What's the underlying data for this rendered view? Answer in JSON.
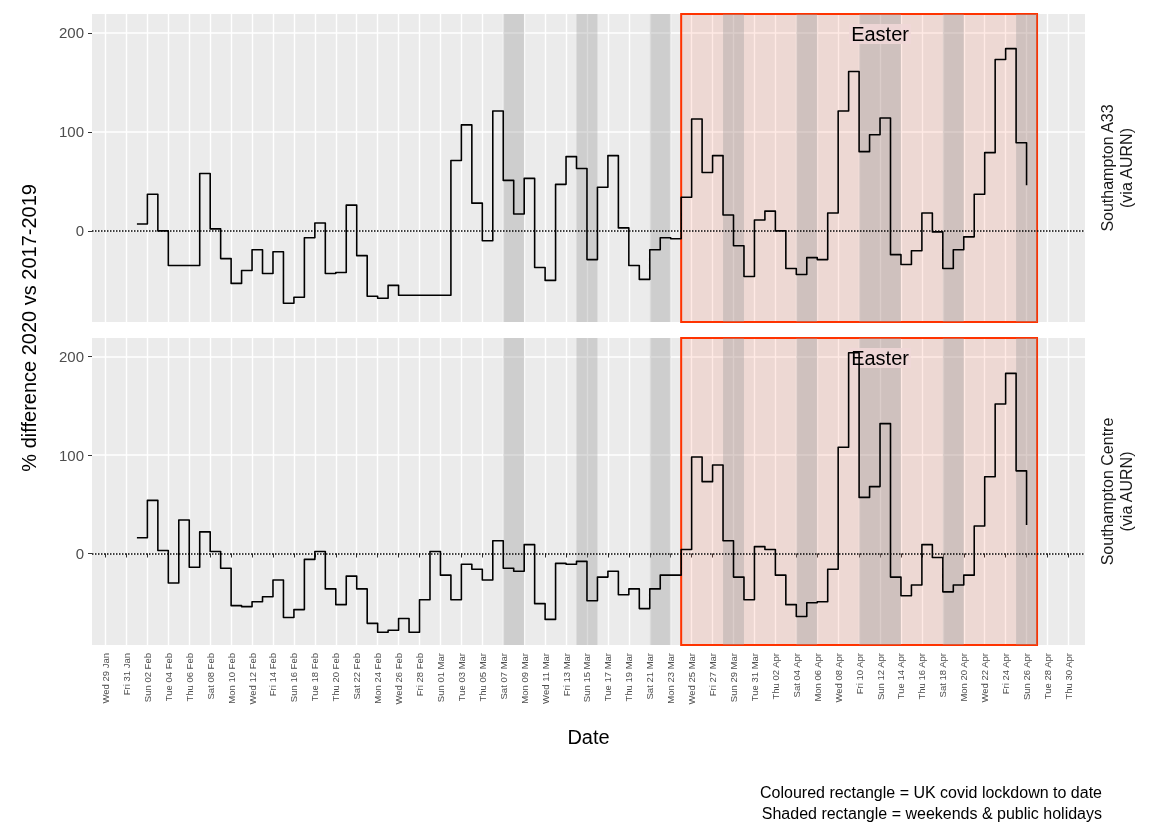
{
  "chart_data": [
    {
      "type": "step",
      "annotations": [
        "Southampton A33\n(via AURN)"
      ],
      "ylabel": "% difference 2020 vs 2017-2019",
      "tick_labels": "y",
      "grid": true,
      "marker": "none",
      "line_style": "solid",
      "color": "#000000",
      "x": [
        "2020-02-01",
        "2020-02-02",
        "2020-02-03",
        "2020-02-04",
        "2020-02-05",
        "2020-02-06",
        "2020-02-07",
        "2020-02-08",
        "2020-02-09",
        "2020-02-10",
        "2020-02-11",
        "2020-02-12",
        "2020-02-13",
        "2020-02-14",
        "2020-02-15",
        "2020-02-16",
        "2020-02-17",
        "2020-02-18",
        "2020-02-19",
        "2020-02-20",
        "2020-02-21",
        "2020-02-22",
        "2020-02-23",
        "2020-02-24",
        "2020-02-25",
        "2020-02-26",
        "2020-02-27",
        "2020-02-28",
        "2020-02-29",
        "2020-03-01",
        "2020-03-02",
        "2020-03-03",
        "2020-03-04",
        "2020-03-05",
        "2020-03-06",
        "2020-03-07",
        "2020-03-08",
        "2020-03-09",
        "2020-03-10",
        "2020-03-11",
        "2020-03-12",
        "2020-03-13",
        "2020-03-14",
        "2020-03-15",
        "2020-03-16",
        "2020-03-17",
        "2020-03-18",
        "2020-03-19",
        "2020-03-20",
        "2020-03-21",
        "2020-03-22",
        "2020-03-23",
        "2020-03-24",
        "2020-03-25",
        "2020-03-26",
        "2020-03-27",
        "2020-03-28",
        "2020-03-29",
        "2020-03-30",
        "2020-03-31",
        "2020-04-01",
        "2020-04-02",
        "2020-04-03",
        "2020-04-04",
        "2020-04-05",
        "2020-04-06",
        "2020-04-07",
        "2020-04-08",
        "2020-04-09",
        "2020-04-10",
        "2020-04-11",
        "2020-04-12",
        "2020-04-13",
        "2020-04-14",
        "2020-04-15",
        "2020-04-16",
        "2020-04-17",
        "2020-04-18",
        "2020-04-19",
        "2020-04-20",
        "2020-04-21",
        "2020-04-22",
        "2020-04-23",
        "2020-04-24",
        "2020-04-25",
        "2020-04-26"
      ],
      "values": [
        7,
        37,
        0,
        -35,
        -35,
        -35,
        58,
        2,
        -28,
        -53,
        -40,
        -19,
        -43,
        -21,
        -73,
        -67,
        -7,
        8,
        -43,
        -42,
        26,
        -25,
        -66,
        -68,
        -55,
        -65,
        -65,
        -65,
        -65,
        -65,
        71,
        107,
        28,
        -10,
        121,
        51,
        17,
        53,
        -37,
        -50,
        47,
        75,
        63,
        -29,
        44,
        76,
        3,
        -35,
        -49,
        -19,
        -7,
        -8,
        34,
        113,
        59,
        76,
        16,
        -15,
        -46,
        11,
        20,
        0,
        -38,
        -44,
        -27,
        -29,
        18,
        121,
        161,
        80,
        97,
        114,
        -24,
        -34,
        -20,
        18,
        -1,
        -38,
        -19,
        -6,
        37,
        79,
        173,
        184,
        89,
        46
      ],
      "xlim": [
        "2020-01-27T17:00",
        "2020-05-01T14:00"
      ],
      "ylim": [
        -92,
        219
      ],
      "yticks": [
        0,
        100,
        200
      ],
      "ref_lines": [
        {
          "axis": "y",
          "value": 0,
          "color": "#000000",
          "line_style": "dotted"
        }
      ],
      "bands": [
        {
          "axis": "x",
          "from": "2020-03-24",
          "to": "2020-04-27",
          "color": "#ff3300"
        },
        {
          "axis": "x",
          "from": "2020-03-07",
          "to": "2020-03-09",
          "color": "#999999"
        },
        {
          "axis": "x",
          "from": "2020-03-14",
          "to": "2020-03-16",
          "color": "#999999"
        },
        {
          "axis": "x",
          "from": "2020-03-21",
          "to": "2020-03-23",
          "color": "#999999"
        },
        {
          "axis": "x",
          "from": "2020-03-28",
          "to": "2020-03-30",
          "color": "#999999"
        },
        {
          "axis": "x",
          "from": "2020-04-04",
          "to": "2020-04-06",
          "color": "#999999"
        },
        {
          "axis": "x",
          "from": "2020-04-10",
          "to": "2020-04-14",
          "color": "#999999",
          "label": "Easter"
        },
        {
          "axis": "x",
          "from": "2020-04-18",
          "to": "2020-04-20",
          "color": "#999999"
        },
        {
          "axis": "x",
          "from": "2020-04-25",
          "to": "2020-04-27",
          "color": "#999999"
        }
      ]
    },
    {
      "type": "step",
      "xlabel": "Date",
      "grid": true,
      "marker": "none",
      "line_style": "solid",
      "color": "#000000",
      "x": [
        "2020-02-01",
        "2020-02-02",
        "2020-02-03",
        "2020-02-04",
        "2020-02-05",
        "2020-02-06",
        "2020-02-07",
        "2020-02-08",
        "2020-02-09",
        "2020-02-10",
        "2020-02-11",
        "2020-02-12",
        "2020-02-13",
        "2020-02-14",
        "2020-02-15",
        "2020-02-16",
        "2020-02-17",
        "2020-02-18",
        "2020-02-19",
        "2020-02-20",
        "2020-02-21",
        "2020-02-22",
        "2020-02-23",
        "2020-02-24",
        "2020-02-25",
        "2020-02-26",
        "2020-02-27",
        "2020-02-28",
        "2020-02-29",
        "2020-03-01",
        "2020-03-02",
        "2020-03-03",
        "2020-03-04",
        "2020-03-05",
        "2020-03-06",
        "2020-03-07",
        "2020-03-08",
        "2020-03-09",
        "2020-03-10",
        "2020-03-11",
        "2020-03-12",
        "2020-03-13",
        "2020-03-14",
        "2020-03-15",
        "2020-03-16",
        "2020-03-17",
        "2020-03-18",
        "2020-03-19",
        "2020-03-20",
        "2020-03-21",
        "2020-03-22",
        "2020-03-23",
        "2020-03-24",
        "2020-03-25",
        "2020-03-26",
        "2020-03-27",
        "2020-03-28",
        "2020-03-29",
        "2020-03-30",
        "2020-03-31",
        "2020-04-01",
        "2020-04-02",
        "2020-04-03",
        "2020-04-04",
        "2020-04-05",
        "2020-04-06",
        "2020-04-07",
        "2020-04-08",
        "2020-04-09",
        "2020-04-10",
        "2020-04-11",
        "2020-04-12",
        "2020-04-13",
        "2020-04-14",
        "2020-04-15",
        "2020-04-16",
        "2020-04-17",
        "2020-04-18",
        "2020-04-19",
        "2020-04-20",
        "2020-04-21",
        "2020-04-22",
        "2020-04-23",
        "2020-04-24",
        "2020-04-25",
        "2020-04-26"
      ],
      "values": [
        16,
        54,
        3,
        -30,
        34,
        -14,
        22,
        2,
        -15,
        -53,
        -54,
        -49,
        -44,
        -27,
        -65,
        -57,
        -6,
        2,
        -36,
        -52,
        -23,
        -36,
        -71,
        -80,
        -78,
        -66,
        -80,
        -47,
        2,
        -22,
        -47,
        -11,
        -16,
        -27,
        13,
        -15,
        -18,
        9,
        -51,
        -67,
        -10,
        -11,
        -8,
        -48,
        -24,
        -18,
        -42,
        -36,
        -56,
        -36,
        -22,
        -22,
        4,
        98,
        73,
        90,
        13,
        -24,
        -47,
        7,
        4,
        -22,
        -52,
        -64,
        -50,
        -49,
        -16,
        108,
        204,
        57,
        68,
        132,
        -24,
        -43,
        -32,
        9,
        -4,
        -39,
        -32,
        -22,
        28,
        78,
        152,
        183,
        84,
        29
      ],
      "xlim": [
        "2020-01-27T17:00",
        "2020-05-01T14:00"
      ],
      "ylim": [
        -93,
        219
      ],
      "yticks": [
        0,
        100,
        200
      ],
      "xticks": [
        {
          "value": "2020-01-29",
          "label": "Wed 29 Jan"
        },
        {
          "value": "2020-01-31",
          "label": "Fri 31 Jan"
        },
        {
          "value": "2020-02-02",
          "label": "Sun 02 Feb"
        },
        {
          "value": "2020-02-04",
          "label": "Tue 04 Feb"
        },
        {
          "value": "2020-02-06",
          "label": "Thu 06 Feb"
        },
        {
          "value": "2020-02-08",
          "label": "Sat 08 Feb"
        },
        {
          "value": "2020-02-10",
          "label": "Mon 10 Feb"
        },
        {
          "value": "2020-02-12",
          "label": "Wed 12 Feb"
        },
        {
          "value": "2020-02-14",
          "label": "Fri 14 Feb"
        },
        {
          "value": "2020-02-16",
          "label": "Sun 16 Feb"
        },
        {
          "value": "2020-02-18",
          "label": "Tue 18 Feb"
        },
        {
          "value": "2020-02-20",
          "label": "Thu 20 Feb"
        },
        {
          "value": "2020-02-22",
          "label": "Sat 22 Feb"
        },
        {
          "value": "2020-02-24",
          "label": "Mon 24 Feb"
        },
        {
          "value": "2020-02-26",
          "label": "Wed 26 Feb"
        },
        {
          "value": "2020-02-28",
          "label": "Fri 28 Feb"
        },
        {
          "value": "2020-03-01",
          "label": "Sun 01 Mar"
        },
        {
          "value": "2020-03-03",
          "label": "Tue 03 Mar"
        },
        {
          "value": "2020-03-05",
          "label": "Thu 05 Mar"
        },
        {
          "value": "2020-03-07",
          "label": "Sat 07 Mar"
        },
        {
          "value": "2020-03-09",
          "label": "Mon 09 Mar"
        },
        {
          "value": "2020-03-11",
          "label": "Wed 11 Mar"
        },
        {
          "value": "2020-03-13",
          "label": "Fri 13 Mar"
        },
        {
          "value": "2020-03-15",
          "label": "Sun 15 Mar"
        },
        {
          "value": "2020-03-17",
          "label": "Tue 17 Mar"
        },
        {
          "value": "2020-03-19",
          "label": "Thu 19 Mar"
        },
        {
          "value": "2020-03-21",
          "label": "Sat 21 Mar"
        },
        {
          "value": "2020-03-23",
          "label": "Mon 23 Mar"
        },
        {
          "value": "2020-03-25",
          "label": "Wed 25 Mar"
        },
        {
          "value": "2020-03-27",
          "label": "Fri 27 Mar"
        },
        {
          "value": "2020-03-29",
          "label": "Sun 29 Mar"
        },
        {
          "value": "2020-03-31",
          "label": "Tue 31 Mar"
        },
        {
          "value": "2020-04-02",
          "label": "Thu 02 Apr"
        },
        {
          "value": "2020-04-04",
          "label": "Sat 04 Apr"
        },
        {
          "value": "2020-04-06",
          "label": "Mon 06 Apr"
        },
        {
          "value": "2020-04-08",
          "label": "Wed 08 Apr"
        },
        {
          "value": "2020-04-10",
          "label": "Fri 10 Apr"
        },
        {
          "value": "2020-04-12",
          "label": "Sun 12 Apr"
        },
        {
          "value": "2020-04-14",
          "label": "Tue 14 Apr"
        },
        {
          "value": "2020-04-16",
          "label": "Thu 16 Apr"
        },
        {
          "value": "2020-04-18",
          "label": "Sat 18 Apr"
        },
        {
          "value": "2020-04-20",
          "label": "Mon 20 Apr"
        },
        {
          "value": "2020-04-22",
          "label": "Wed 22 Apr"
        },
        {
          "value": "2020-04-24",
          "label": "Fri 24 Apr"
        },
        {
          "value": "2020-04-26",
          "label": "Sun 26 Apr"
        },
        {
          "value": "2020-04-28",
          "label": "Tue 28 Apr"
        },
        {
          "value": "2020-04-30",
          "label": "Thu 30 Apr"
        }
      ],
      "ref_lines": [
        {
          "axis": "y",
          "value": 0,
          "color": "#000000",
          "line_style": "dotted"
        }
      ],
      "bands": [
        {
          "axis": "x",
          "from": "2020-03-24",
          "to": "2020-04-27",
          "color": "#ff3300"
        },
        {
          "axis": "x",
          "from": "2020-03-07",
          "to": "2020-03-09",
          "color": "#999999"
        },
        {
          "axis": "x",
          "from": "2020-03-14",
          "to": "2020-03-16",
          "color": "#999999"
        },
        {
          "axis": "x",
          "from": "2020-03-21",
          "to": "2020-03-23",
          "color": "#999999"
        },
        {
          "axis": "x",
          "from": "2020-03-28",
          "to": "2020-03-30",
          "color": "#999999"
        },
        {
          "axis": "x",
          "from": "2020-04-04",
          "to": "2020-04-06",
          "color": "#999999"
        },
        {
          "axis": "x",
          "from": "2020-04-10",
          "to": "2020-04-14",
          "color": "#999999",
          "label": "Easter"
        },
        {
          "axis": "x",
          "from": "2020-04-18",
          "to": "2020-04-20",
          "color": "#999999"
        },
        {
          "axis": "x",
          "from": "2020-04-25",
          "to": "2020-04-27",
          "color": "#999999"
        }
      ],
      "annotations": [
        "Southampton Centre\n(via AURN)",
        "Coloured rectangle = UK covid lockdown to date",
        "Shaded rectangle = weekends & public holidays"
      ]
    }
  ]
}
